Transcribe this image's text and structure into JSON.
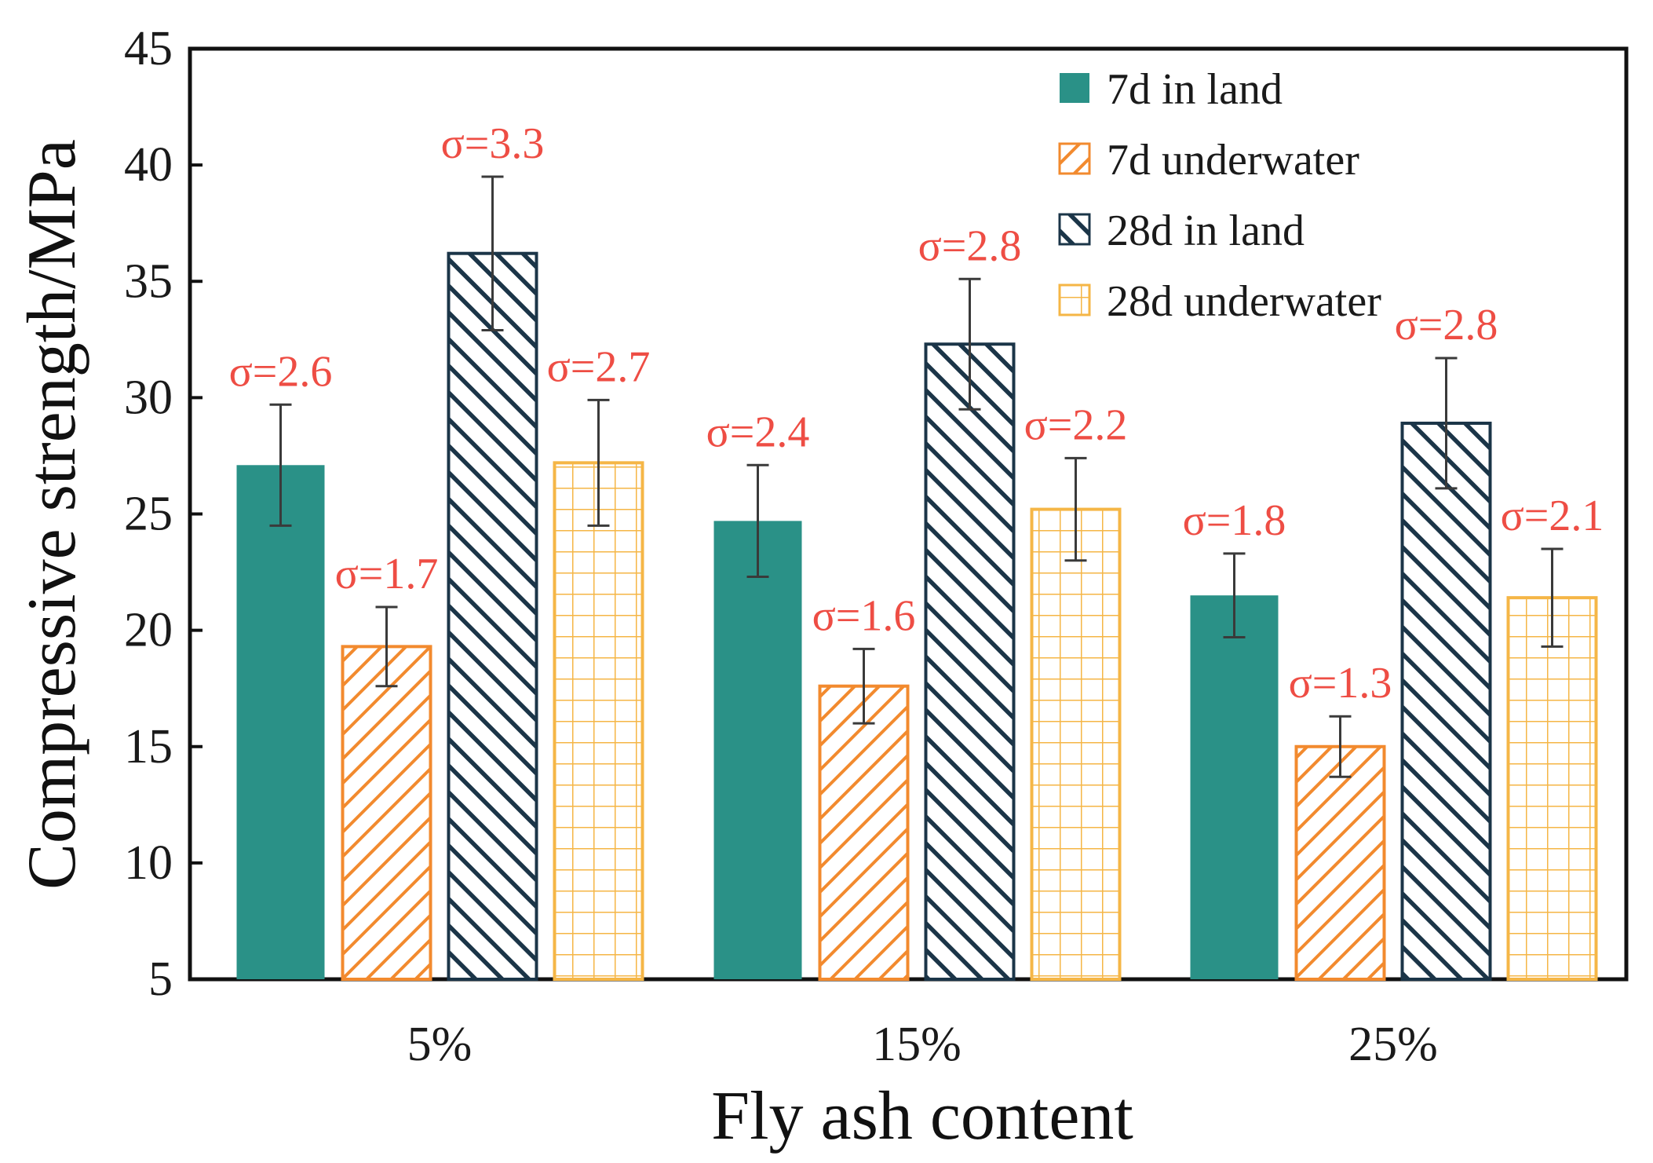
{
  "chart_data": {
    "type": "bar",
    "title": "",
    "xlabel": "Fly ash content",
    "ylabel": "Compressive strength/MPa",
    "categories": [
      "5%",
      "15%",
      "25%"
    ],
    "ylim": [
      5,
      45
    ],
    "yticks": [
      5,
      10,
      15,
      20,
      25,
      30,
      35,
      40,
      45
    ],
    "grid": false,
    "legend_position": "top-right",
    "series": [
      {
        "name": "7d in land",
        "values": [
          27.1,
          24.7,
          21.5
        ],
        "errors": [
          2.6,
          2.4,
          1.8
        ],
        "sigma_labels": [
          "σ=2.6",
          "σ=2.4",
          "σ=1.8"
        ],
        "pattern": "solid",
        "color": "#2a9187"
      },
      {
        "name": "7d underwater",
        "values": [
          19.3,
          17.6,
          15.0
        ],
        "errors": [
          1.7,
          1.6,
          1.3
        ],
        "sigma_labels": [
          "σ=1.7",
          "σ=1.6",
          "σ=1.3"
        ],
        "pattern": "diagonal",
        "color": "#f28a2e"
      },
      {
        "name": "28d in land",
        "values": [
          36.2,
          32.3,
          28.9
        ],
        "errors": [
          3.3,
          2.8,
          2.8
        ],
        "sigma_labels": [
          "σ=3.3",
          "σ=2.8",
          "σ=2.8"
        ],
        "pattern": "backdiagonal",
        "color": "#1b3548"
      },
      {
        "name": "28d underwater",
        "values": [
          27.2,
          25.2,
          21.4
        ],
        "errors": [
          2.7,
          2.2,
          2.1
        ],
        "sigma_labels": [
          "σ=2.7",
          "σ=2.2",
          "σ=2.1"
        ],
        "pattern": "grid",
        "color": "#f5b646"
      }
    ],
    "annotation_color": "#ee4d44",
    "error_bar_color": "#3a3a3a"
  }
}
